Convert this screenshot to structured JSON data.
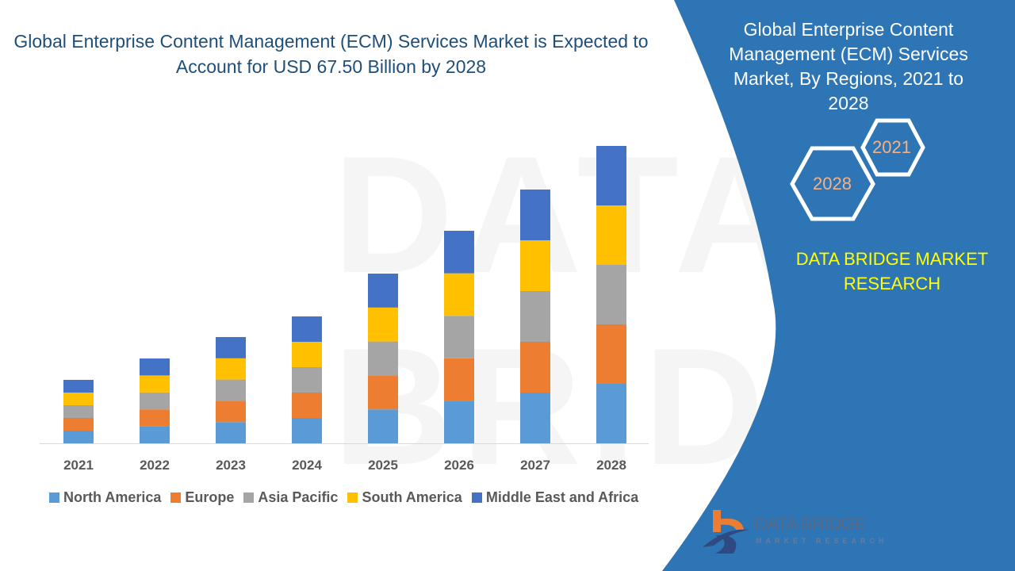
{
  "title": "Global Enterprise Content Management (ECM) Services Market is Expected to Account for USD 67.50 Billion by 2028",
  "panel": {
    "title": "Global Enterprise Content Management (ECM) Services Market, By Regions, 2021 to 2028",
    "hex_start": "2021",
    "hex_end": "2028",
    "brand": "DATA BRIDGE MARKET RESEARCH",
    "logo_text": "DATA BRIDGE",
    "logo_sub": "MARKET RESEARCH",
    "background_color": "#2E75B6"
  },
  "watermark": "DATA BRIDGE",
  "chart_data": {
    "type": "bar",
    "stacked": true,
    "title": "",
    "xlabel": "",
    "ylabel": "",
    "y_axis_shown": false,
    "grid": false,
    "legend_placement": "bottom",
    "categories": [
      "2021",
      "2022",
      "2023",
      "2024",
      "2025",
      "2026",
      "2027",
      "2028"
    ],
    "ylim": [
      0,
      375
    ],
    "series": [
      {
        "name": "North America",
        "color": "#5B9BD5",
        "values": [
          16,
          21.4,
          26.8,
          32,
          42.8,
          53.6,
          64,
          75
        ]
      },
      {
        "name": "Europe",
        "color": "#ED7D31",
        "values": [
          16,
          21.4,
          26.8,
          32,
          42.8,
          53.6,
          64,
          75
        ]
      },
      {
        "name": "Asia Pacific",
        "color": "#A5A5A5",
        "values": [
          16,
          21.4,
          26.8,
          32,
          42.8,
          53.6,
          64,
          75
        ]
      },
      {
        "name": "South America",
        "color": "#FFC000",
        "values": [
          16,
          21.4,
          26.8,
          32,
          42.8,
          53.6,
          64,
          75
        ]
      },
      {
        "name": "Middle East and Africa",
        "color": "#4472C4",
        "values": [
          16,
          21.4,
          26.8,
          32,
          42.8,
          53.6,
          64,
          75
        ]
      }
    ]
  }
}
